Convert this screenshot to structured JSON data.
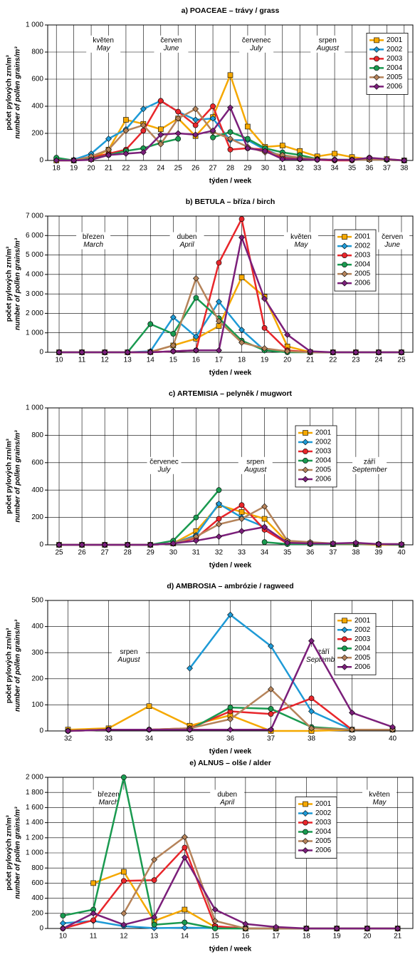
{
  "chart_data": [
    {
      "type": "line",
      "title": "a) POACEAE – trávy / grass",
      "y_label": "počet pylových zrn/m³",
      "y_label_en": "number of pollen grains/m³",
      "x_label": "týden / week",
      "legend": "upper right",
      "grid": true,
      "annotations": [
        {
          "text": "květen",
          "text_en": "May"
        },
        {
          "text": "červen",
          "text_en": "June"
        },
        {
          "text": "červenec",
          "text_en": "July"
        },
        {
          "text": "srpen",
          "text_en": "August"
        }
      ],
      "categories": [
        "18",
        "19",
        "20",
        "21",
        "22",
        "23",
        "24",
        "25",
        "26",
        "27",
        "28",
        "29",
        "30",
        "31",
        "32",
        "33",
        "34",
        "35",
        "36",
        "37",
        "38"
      ],
      "ylim": [
        0,
        1000
      ],
      "yticks": [
        0,
        200,
        400,
        600,
        800,
        {
          "value": 1000,
          "label": "1 000"
        }
      ],
      "series": [
        {
          "name": "2001",
          "color": "#f5a800",
          "marker": "square",
          "values": [
            0,
            0,
            10,
            80,
            300,
            270,
            230,
            310,
            180,
            320,
            630,
            250,
            100,
            110,
            70,
            30,
            50,
            25,
            10,
            10,
            0
          ]
        },
        {
          "name": "2002",
          "color": "#1e9ad6",
          "marker": "diamond",
          "values": [
            0,
            5,
            50,
            160,
            230,
            380,
            440,
            360,
            300,
            310,
            150,
            150,
            80,
            30,
            20,
            10,
            5,
            5,
            5,
            5,
            0
          ]
        },
        {
          "name": "2003",
          "color": "#e8262b",
          "marker": "circle",
          "values": [
            10,
            0,
            20,
            50,
            80,
            220,
            440,
            360,
            260,
            400,
            80,
            90,
            80,
            20,
            10,
            5,
            0,
            0,
            20,
            5,
            0
          ]
        },
        {
          "name": "2004",
          "color": "#1a9a50",
          "marker": "circle",
          "values": [
            20,
            0,
            10,
            40,
            70,
            90,
            130,
            160,
            null,
            170,
            210,
            160,
            90,
            60,
            40,
            10,
            5,
            5,
            10,
            5,
            0
          ]
        },
        {
          "name": "2005",
          "color": "#b5835a",
          "marker": "diamond",
          "values": [
            0,
            0,
            30,
            80,
            220,
            260,
            120,
            310,
            380,
            210,
            160,
            100,
            60,
            40,
            20,
            10,
            5,
            5,
            5,
            5,
            0
          ]
        },
        {
          "name": "2006",
          "color": "#7b1f7a",
          "marker": "diamond",
          "values": [
            0,
            0,
            5,
            40,
            50,
            60,
            190,
            200,
            190,
            220,
            390,
            90,
            70,
            10,
            10,
            5,
            5,
            5,
            20,
            10,
            0
          ]
        }
      ]
    },
    {
      "type": "line",
      "title": "b) BETULA – bříza / birch",
      "y_label": "počet pylových zrn/m³",
      "y_label_en": "number of pollen grains/m³",
      "x_label": "týden / week",
      "legend": "right",
      "grid": true,
      "annotations": [
        {
          "text": "březen",
          "text_en": "March"
        },
        {
          "text": "duben",
          "text_en": "April"
        },
        {
          "text": "květen",
          "text_en": "May"
        },
        {
          "text": "červen",
          "text_en": "June"
        }
      ],
      "categories": [
        "10",
        "11",
        "12",
        "13",
        "14",
        "15",
        "16",
        "17",
        "18",
        "19",
        "20",
        "21",
        "22",
        "23",
        "24",
        "25"
      ],
      "ylim": [
        0,
        7000
      ],
      "yticks": [
        0,
        {
          "value": 1000,
          "label": "1 000"
        },
        {
          "value": 2000,
          "label": "2 000"
        },
        {
          "value": 3000,
          "label": "3 000"
        },
        {
          "value": 4000,
          "label": "4 000"
        },
        {
          "value": 5000,
          "label": "5 000"
        },
        {
          "value": 6000,
          "label": "6 000"
        },
        {
          "value": 7000,
          "label": "7 000"
        }
      ],
      "series": [
        {
          "name": "2001",
          "color": "#f5a800",
          "marker": "square",
          "values": [
            0,
            0,
            0,
            0,
            10,
            350,
            700,
            1350,
            3850,
            2850,
            300,
            10,
            0,
            0,
            0,
            0
          ]
        },
        {
          "name": "2002",
          "color": "#1e9ad6",
          "marker": "diamond",
          "values": [
            0,
            0,
            0,
            0,
            50,
            1800,
            800,
            2600,
            1150,
            100,
            50,
            0,
            0,
            0,
            0,
            0
          ]
        },
        {
          "name": "2003",
          "color": "#e8262b",
          "marker": "circle",
          "values": [
            0,
            0,
            0,
            0,
            0,
            50,
            100,
            4600,
            6850,
            1250,
            100,
            0,
            0,
            0,
            0,
            0
          ]
        },
        {
          "name": "2004",
          "color": "#1a9a50",
          "marker": "circle",
          "values": [
            0,
            0,
            0,
            0,
            1450,
            950,
            2800,
            1750,
            600,
            100,
            0,
            0,
            0,
            0,
            0,
            0
          ]
        },
        {
          "name": "2005",
          "color": "#b5835a",
          "marker": "diamond",
          "values": [
            0,
            0,
            0,
            0,
            20,
            350,
            3800,
            1600,
            500,
            200,
            50,
            0,
            0,
            0,
            0,
            0
          ]
        },
        {
          "name": "2006",
          "color": "#7b1f7a",
          "marker": "diamond",
          "values": [
            0,
            0,
            0,
            0,
            0,
            50,
            100,
            100,
            5900,
            2750,
            900,
            50,
            0,
            0,
            0,
            0
          ]
        }
      ]
    },
    {
      "type": "line",
      "title": "c) ARTEMISIA – pelyněk / mugwort",
      "y_label": "počet pylových zrn/m³",
      "y_label_en": "number of pollen grains/m³",
      "x_label": "týden / week",
      "legend": "center",
      "grid": true,
      "annotations": [
        {
          "text": "červenec",
          "text_en": "July"
        },
        {
          "text": "srpen",
          "text_en": "August"
        },
        {
          "text": "září",
          "text_en": "September"
        }
      ],
      "categories": [
        "25",
        "26",
        "27",
        "28",
        "29",
        "30",
        "31",
        "32",
        "33",
        "34",
        "35",
        "36",
        "37",
        "38",
        "39",
        "40"
      ],
      "ylim": [
        0,
        1000
      ],
      "yticks": [
        0,
        200,
        400,
        600,
        800,
        {
          "value": 1000,
          "label": "1 000"
        }
      ],
      "series": [
        {
          "name": "2001",
          "color": "#f5a800",
          "marker": "square",
          "values": [
            0,
            0,
            0,
            0,
            0,
            10,
            100,
            290,
            240,
            190,
            20,
            10,
            5,
            5,
            0,
            0
          ]
        },
        {
          "name": "2002",
          "color": "#1e9ad6",
          "marker": "diamond",
          "values": [
            0,
            0,
            0,
            0,
            0,
            10,
            70,
            300,
            200,
            130,
            10,
            10,
            10,
            5,
            5,
            0
          ]
        },
        {
          "name": "2003",
          "color": "#e8262b",
          "marker": "circle",
          "values": [
            0,
            0,
            0,
            0,
            0,
            10,
            50,
            190,
            290,
            110,
            10,
            10,
            5,
            5,
            5,
            0
          ]
        },
        {
          "name": "2004",
          "color": "#1a9a50",
          "marker": "circle",
          "values": [
            0,
            0,
            0,
            0,
            0,
            30,
            200,
            400,
            null,
            20,
            5,
            5,
            5,
            5,
            5,
            0
          ]
        },
        {
          "name": "2005",
          "color": "#b5835a",
          "marker": "diamond",
          "values": [
            0,
            0,
            0,
            0,
            0,
            10,
            60,
            150,
            190,
            280,
            30,
            20,
            10,
            10,
            5,
            5
          ]
        },
        {
          "name": "2006",
          "color": "#7b1f7a",
          "marker": "diamond",
          "values": [
            0,
            0,
            0,
            0,
            0,
            10,
            30,
            60,
            100,
            130,
            15,
            10,
            10,
            15,
            5,
            5
          ]
        }
      ]
    },
    {
      "type": "line",
      "title": "d) AMBROSIA – ambrózie / ragweed",
      "y_label": "počet pylových zrn/m³",
      "y_label_en": "number of pollen grains/m³",
      "x_label": "týden / week",
      "legend": "right",
      "grid": true,
      "annotations": [
        {
          "text": "srpen",
          "text_en": "August"
        },
        {
          "text": "září",
          "text_en": "September"
        }
      ],
      "categories": [
        "32",
        "33",
        "34",
        "35",
        "36",
        "37",
        "38",
        "39",
        "40"
      ],
      "ylim": [
        0,
        500
      ],
      "yticks": [
        0,
        100,
        200,
        300,
        400,
        500
      ],
      "series": [
        {
          "name": "2001",
          "color": "#f5a800",
          "marker": "square",
          "values": [
            5,
            10,
            95,
            20,
            60,
            0,
            0,
            5,
            5
          ]
        },
        {
          "name": "2002",
          "color": "#1e9ad6",
          "marker": "diamond",
          "values": [
            null,
            null,
            null,
            240,
            445,
            325,
            75,
            5,
            null
          ]
        },
        {
          "name": "2003",
          "color": "#e8262b",
          "marker": "circle",
          "values": [
            0,
            5,
            5,
            10,
            75,
            65,
            125,
            5,
            5
          ]
        },
        {
          "name": "2004",
          "color": "#1a9a50",
          "marker": "circle",
          "values": [
            0,
            5,
            5,
            5,
            90,
            85,
            15,
            5,
            5
          ]
        },
        {
          "name": "2005",
          "color": "#b5835a",
          "marker": "diamond",
          "values": [
            0,
            5,
            5,
            10,
            45,
            160,
            10,
            5,
            5
          ]
        },
        {
          "name": "2006",
          "color": "#7b1f7a",
          "marker": "diamond",
          "values": [
            0,
            5,
            5,
            5,
            5,
            5,
            345,
            70,
            15
          ]
        }
      ]
    },
    {
      "type": "line",
      "title": "e) ALNUS – olše / alder",
      "y_label": "počet pylových zrn/m³",
      "y_label_en": "number of pollen grains/m³",
      "x_label": "týden / week",
      "legend": "center",
      "grid": true,
      "annotations": [
        {
          "text": "březen",
          "text_en": "March"
        },
        {
          "text": "duben",
          "text_en": "April"
        },
        {
          "text": "květen",
          "text_en": "May"
        }
      ],
      "categories": [
        "10",
        "11",
        "12",
        "13",
        "14",
        "15",
        "16",
        "17",
        "18",
        "19",
        "20",
        "21"
      ],
      "ylim": [
        0,
        2000
      ],
      "yticks": [
        0,
        200,
        400,
        600,
        800,
        {
          "value": 1000,
          "label": "1 000"
        },
        {
          "value": 1200,
          "label": "1 200"
        },
        {
          "value": 1400,
          "label": "1 400"
        },
        {
          "value": 1600,
          "label": "1 600"
        },
        {
          "value": 1800,
          "label": "1 800"
        },
        {
          "value": 2000,
          "label": "2 000"
        }
      ],
      "series": [
        {
          "name": "2001",
          "color": "#f5a800",
          "marker": "square",
          "values": [
            null,
            600,
            750,
            100,
            250,
            20,
            0,
            0,
            0,
            0,
            0,
            0
          ]
        },
        {
          "name": "2002",
          "color": "#1e9ad6",
          "marker": "diamond",
          "values": [
            70,
            100,
            30,
            5,
            10,
            5,
            0,
            0,
            0,
            0,
            0,
            0
          ]
        },
        {
          "name": "2003",
          "color": "#e8262b",
          "marker": "circle",
          "values": [
            0,
            110,
            630,
            640,
            1070,
            30,
            0,
            0,
            0,
            0,
            0,
            0
          ]
        },
        {
          "name": "2004",
          "color": "#1a9a50",
          "marker": "circle",
          "values": [
            170,
            250,
            2000,
            50,
            80,
            0,
            0,
            0,
            0,
            0,
            0,
            0
          ]
        },
        {
          "name": "2005",
          "color": "#b5835a",
          "marker": "diamond",
          "values": [
            null,
            null,
            200,
            910,
            1210,
            100,
            0,
            0,
            0,
            0,
            0,
            0
          ]
        },
        {
          "name": "2006",
          "color": "#7b1f7a",
          "marker": "diamond",
          "values": [
            0,
            200,
            50,
            150,
            940,
            250,
            60,
            20,
            0,
            0,
            0,
            0
          ]
        }
      ]
    }
  ]
}
